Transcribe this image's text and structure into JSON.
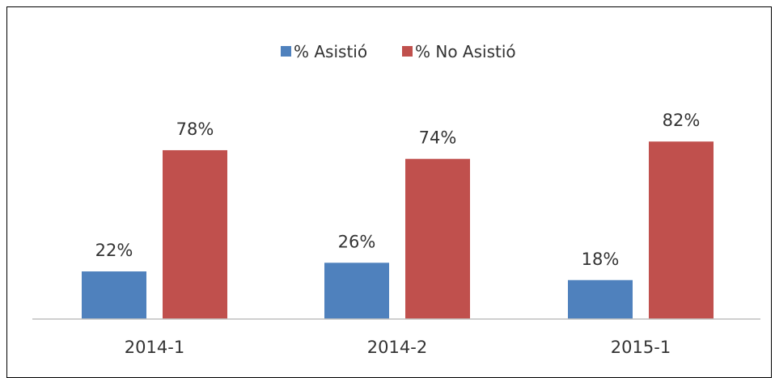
{
  "chart_data": {
    "type": "bar",
    "categories": [
      "2014-1",
      "2014-2",
      "2015-1"
    ],
    "series": [
      {
        "name": "% Asistió",
        "values": [
          22,
          26,
          18
        ],
        "labels": [
          "22%",
          "26%",
          "18%"
        ],
        "color": "#4F81BD"
      },
      {
        "name": "% No Asistió",
        "values": [
          78,
          74,
          82
        ],
        "labels": [
          "78%",
          "74%",
          "82%"
        ],
        "color": "#C0504D"
      }
    ],
    "ylim": [
      0,
      100
    ],
    "grid": false,
    "legend": "top-center"
  }
}
